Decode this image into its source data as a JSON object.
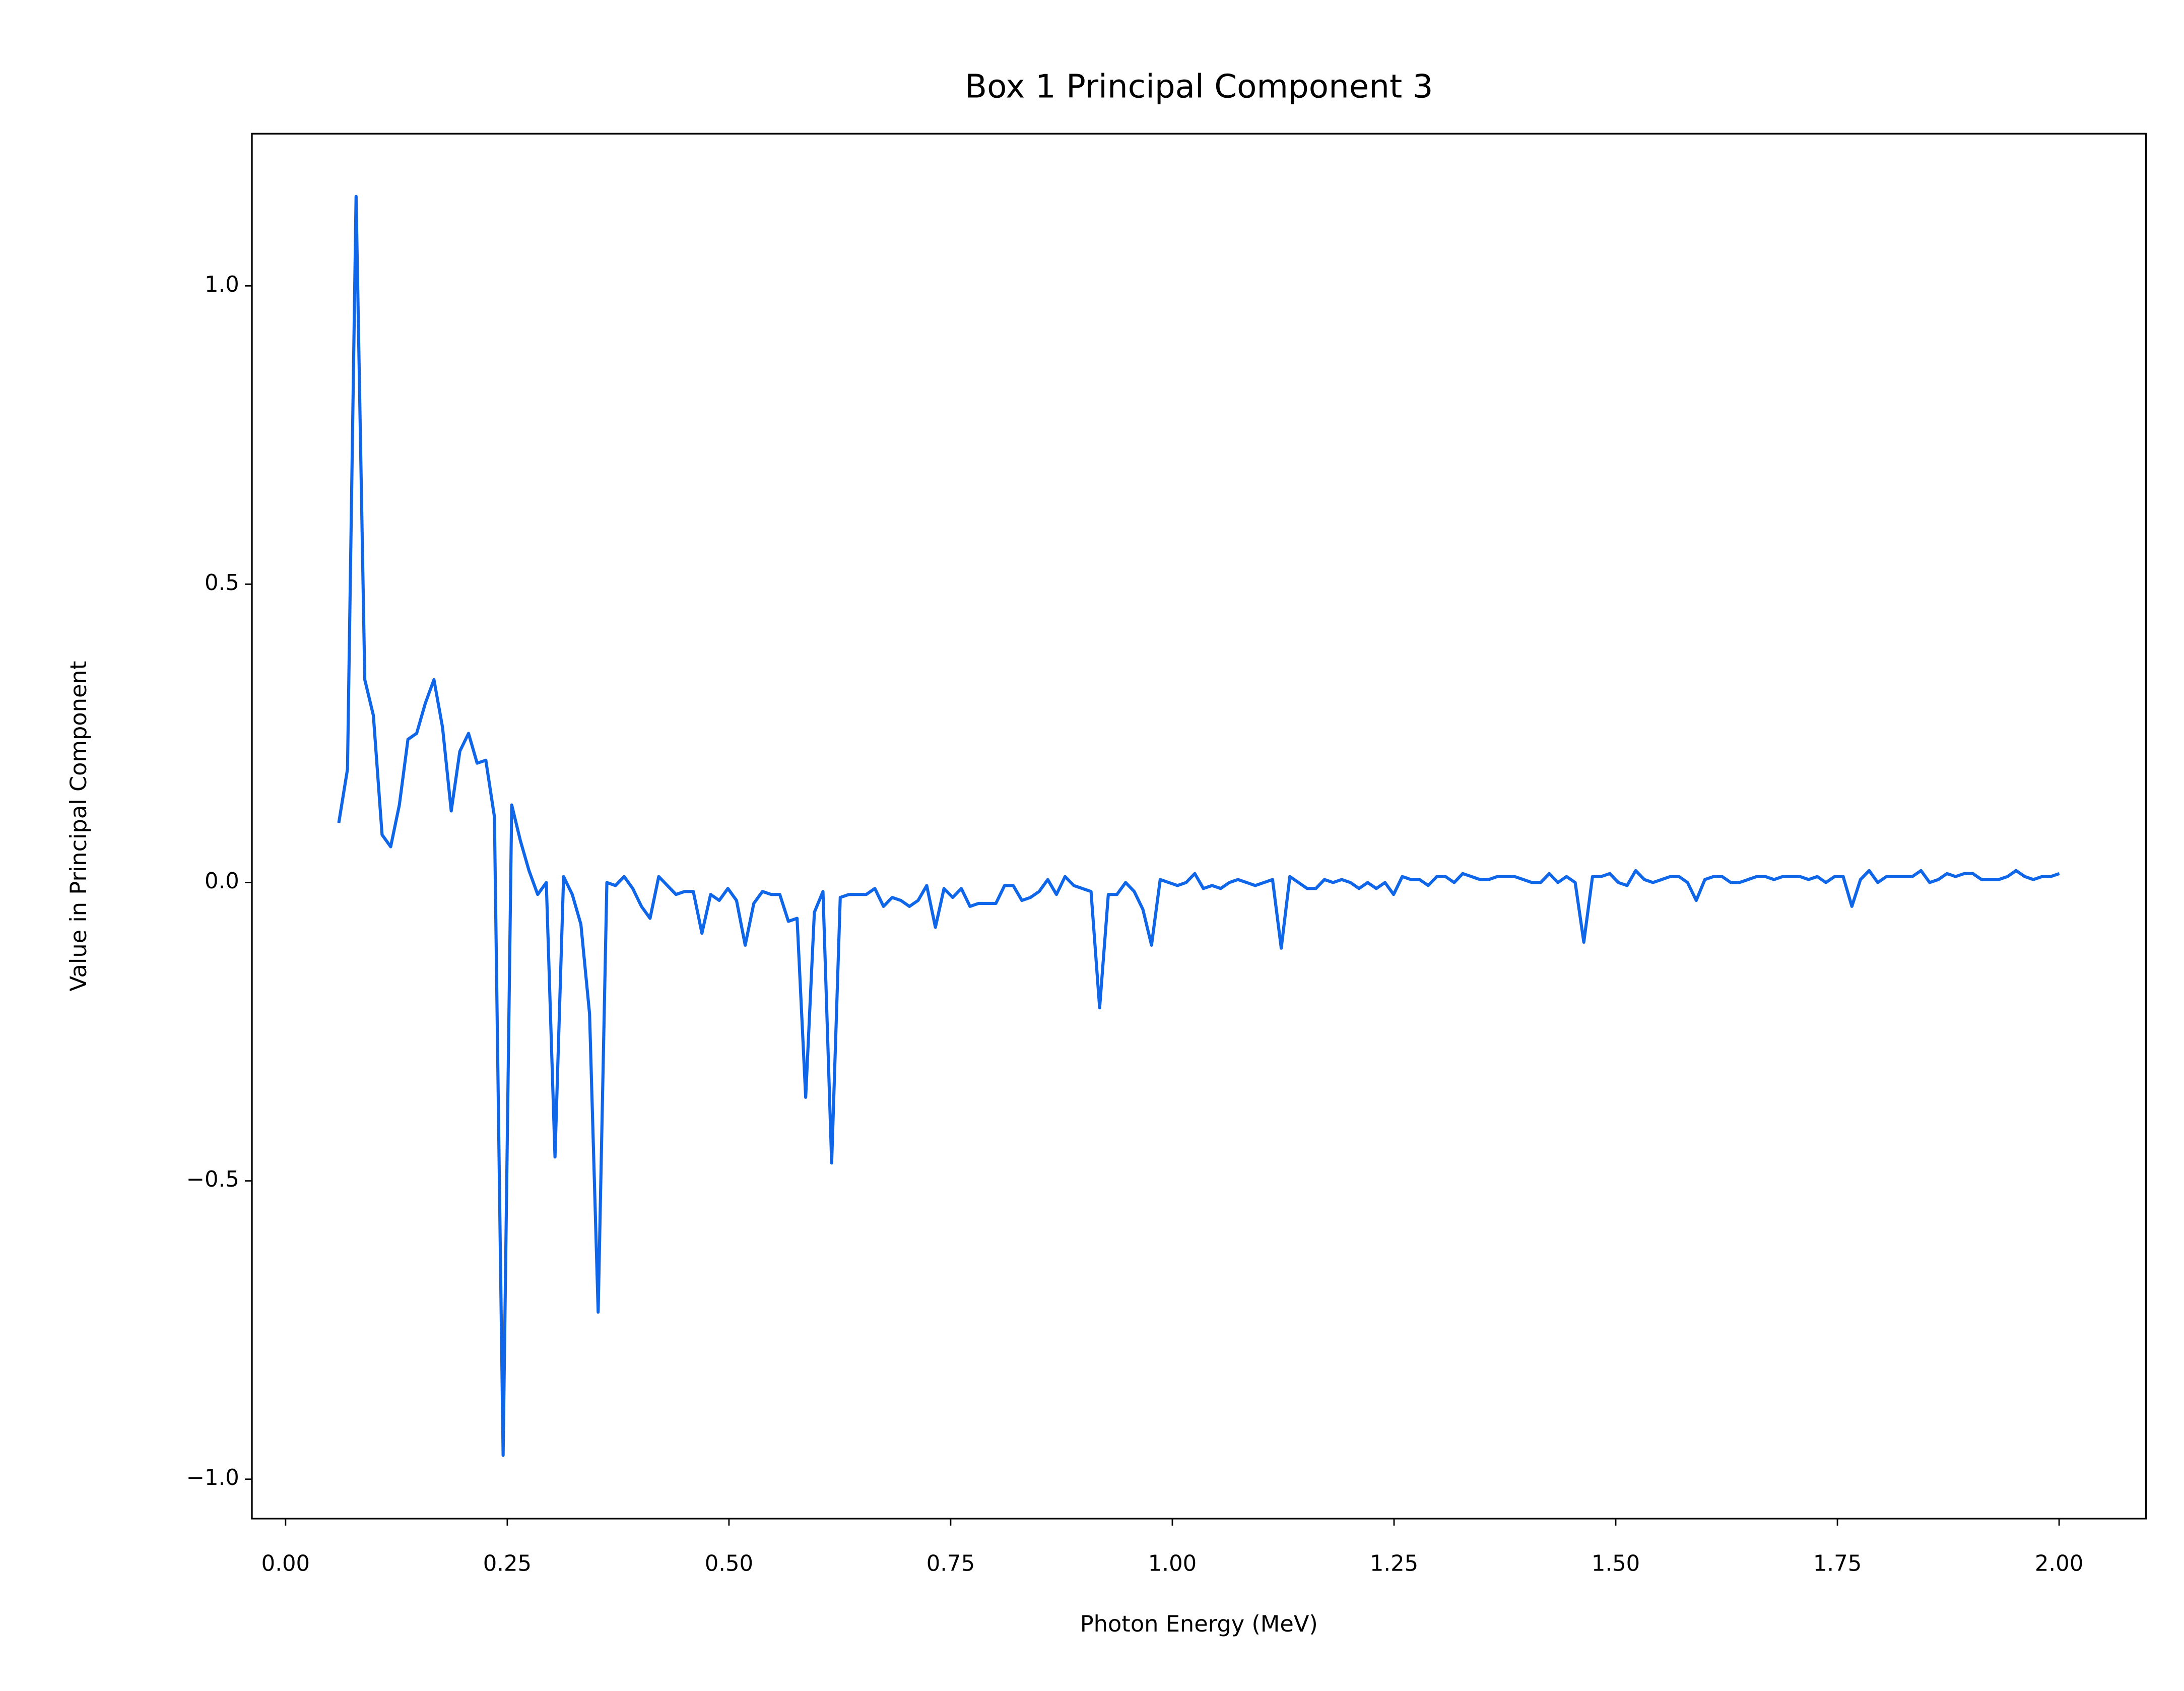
{
  "chart_data": {
    "type": "line",
    "title": "Box 1 Principal Component 3",
    "x_label": "Photon Energy (MeV)",
    "y_label": "Value in Principal Component",
    "x": [
      0.06,
      0.0698,
      0.0795,
      0.0893,
      0.099,
      0.1088,
      0.1185,
      0.1283,
      0.138,
      0.1478,
      0.1575,
      0.1673,
      0.177,
      0.1868,
      0.1965,
      0.2063,
      0.216,
      0.2258,
      0.2355,
      0.2453,
      0.255,
      0.2648,
      0.2745,
      0.2843,
      0.294,
      0.3038,
      0.3135,
      0.3233,
      0.333,
      0.3428,
      0.3525,
      0.3623,
      0.372,
      0.3818,
      0.3915,
      0.4013,
      0.411,
      0.4208,
      0.4305,
      0.4403,
      0.45,
      0.4598,
      0.4695,
      0.4793,
      0.489,
      0.4988,
      0.5085,
      0.5183,
      0.528,
      0.5378,
      0.5475,
      0.5573,
      0.567,
      0.5768,
      0.5865,
      0.5963,
      0.606,
      0.6158,
      0.6255,
      0.6353,
      0.645,
      0.6548,
      0.6645,
      0.6743,
      0.684,
      0.6938,
      0.7035,
      0.7133,
      0.723,
      0.7328,
      0.7425,
      0.7523,
      0.762,
      0.7718,
      0.7815,
      0.7913,
      0.801,
      0.8108,
      0.8205,
      0.8303,
      0.84,
      0.8498,
      0.8595,
      0.8693,
      0.879,
      0.8888,
      0.8985,
      0.9083,
      0.918,
      0.9278,
      0.9375,
      0.9473,
      0.957,
      0.9668,
      0.9765,
      0.9863,
      0.996,
      1.0058,
      1.0155,
      1.0253,
      1.035,
      1.0448,
      1.0545,
      1.0643,
      1.074,
      1.0838,
      1.0935,
      1.1033,
      1.113,
      1.1228,
      1.1325,
      1.1423,
      1.152,
      1.1618,
      1.1715,
      1.1813,
      1.191,
      1.2008,
      1.2105,
      1.2203,
      1.23,
      1.2398,
      1.2495,
      1.2593,
      1.269,
      1.2788,
      1.2885,
      1.2983,
      1.308,
      1.3178,
      1.3275,
      1.3373,
      1.347,
      1.3568,
      1.3665,
      1.3763,
      1.386,
      1.3958,
      1.4055,
      1.4153,
      1.425,
      1.4348,
      1.4445,
      1.4543,
      1.464,
      1.4738,
      1.4835,
      1.4933,
      1.503,
      1.5128,
      1.5225,
      1.5323,
      1.542,
      1.5518,
      1.5615,
      1.5713,
      1.581,
      1.5908,
      1.6005,
      1.6103,
      1.62,
      1.6298,
      1.6395,
      1.6493,
      1.659,
      1.6688,
      1.6785,
      1.6883,
      1.698,
      1.7078,
      1.7175,
      1.7273,
      1.737,
      1.7468,
      1.7565,
      1.7663,
      1.776,
      1.7858,
      1.7955,
      1.8053,
      1.815,
      1.8248,
      1.8345,
      1.8443,
      1.854,
      1.8638,
      1.8735,
      1.8833,
      1.893,
      1.9028,
      1.9125,
      1.9223,
      1.932,
      1.9418,
      1.9515,
      1.9613,
      1.971,
      1.9808,
      1.9905,
      2.0003
    ],
    "series": [
      {
        "color": "#0f66e8",
        "values": [
          0.1,
          0.19,
          1.15,
          0.34,
          0.28,
          0.08,
          0.06,
          0.13,
          0.24,
          0.25,
          0.3,
          0.34,
          0.26,
          0.12,
          0.22,
          0.25,
          0.2,
          0.205,
          0.11,
          -0.96,
          0.13,
          0.07,
          0.02,
          -0.02,
          0.0,
          -0.46,
          0.01,
          -0.02,
          -0.07,
          -0.22,
          -0.72,
          0.0,
          -0.005,
          0.01,
          -0.01,
          -0.04,
          -0.06,
          0.01,
          -0.005,
          -0.02,
          -0.015,
          -0.015,
          -0.085,
          -0.02,
          -0.03,
          -0.01,
          -0.03,
          -0.105,
          -0.035,
          -0.015,
          -0.02,
          -0.02,
          -0.065,
          -0.06,
          -0.36,
          -0.05,
          -0.015,
          -0.47,
          -0.025,
          -0.02,
          -0.02,
          -0.02,
          -0.01,
          -0.04,
          -0.025,
          -0.03,
          -0.04,
          -0.03,
          -0.005,
          -0.075,
          -0.01,
          -0.025,
          -0.01,
          -0.04,
          -0.035,
          -0.035,
          -0.035,
          -0.005,
          -0.005,
          -0.03,
          -0.025,
          -0.015,
          0.005,
          -0.02,
          0.01,
          -0.005,
          -0.01,
          -0.015,
          -0.21,
          -0.02,
          -0.02,
          0.0,
          -0.015,
          -0.045,
          -0.105,
          0.005,
          0.0,
          -0.005,
          0.0,
          0.015,
          -0.01,
          -0.005,
          -0.01,
          0.0,
          0.005,
          0.0,
          -0.005,
          0.0,
          0.005,
          -0.11,
          0.01,
          0.0,
          -0.01,
          -0.01,
          0.005,
          0.0,
          0.005,
          0.0,
          -0.01,
          0.0,
          -0.01,
          0.0,
          -0.02,
          0.01,
          0.005,
          0.005,
          -0.005,
          0.01,
          0.01,
          0.0,
          0.015,
          0.01,
          0.005,
          0.005,
          0.01,
          0.01,
          0.01,
          0.005,
          0.0,
          0.0,
          0.015,
          0.0,
          0.01,
          0.0,
          -0.1,
          0.01,
          0.01,
          0.015,
          0.0,
          -0.005,
          0.02,
          0.005,
          0.0,
          0.005,
          0.01,
          0.01,
          0.0,
          -0.03,
          0.005,
          0.01,
          0.01,
          0.0,
          0.0,
          0.005,
          0.01,
          0.01,
          0.005,
          0.01,
          0.01,
          0.01,
          0.005,
          0.01,
          0.0,
          0.01,
          0.01,
          -0.04,
          0.005,
          0.02,
          0.0,
          0.01,
          0.01,
          0.01,
          0.01,
          0.02,
          0.0,
          0.005,
          0.015,
          0.01,
          0.015,
          0.015,
          0.005,
          0.005,
          0.005,
          0.01,
          0.02,
          0.01,
          0.005,
          0.01,
          0.01,
          0.015
        ]
      }
    ],
    "xlim": [
      -0.038,
      2.098
    ],
    "ylim": [
      -1.066,
      1.255
    ],
    "xticks": [
      {
        "value": 0,
        "label": "0.00"
      },
      {
        "value": 0.25,
        "label": "0.25"
      },
      {
        "value": 0.5,
        "label": "0.50"
      },
      {
        "value": 0.75,
        "label": "0.75"
      },
      {
        "value": 1,
        "label": "1.00"
      },
      {
        "value": 1.25,
        "label": "1.25"
      },
      {
        "value": 1.5,
        "label": "1.50"
      },
      {
        "value": 1.75,
        "label": "1.75"
      },
      {
        "value": 2,
        "label": "2.00"
      }
    ],
    "yticks": [
      {
        "value": -1,
        "label": "−1.0"
      },
      {
        "value": -0.5,
        "label": "−0.5"
      },
      {
        "value": 0,
        "label": "0.0"
      },
      {
        "value": 0.5,
        "label": "0.5"
      },
      {
        "value": 1,
        "label": "1.0"
      }
    ],
    "grid": false
  }
}
